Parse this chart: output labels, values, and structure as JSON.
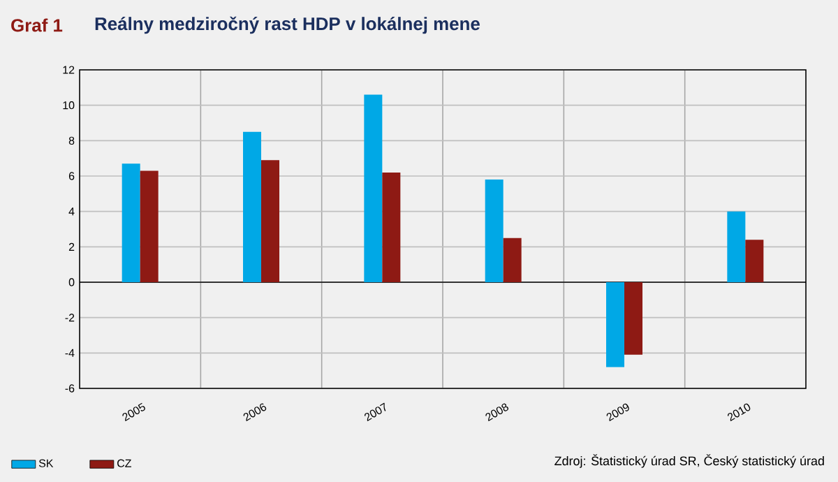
{
  "chart_data": {
    "type": "bar",
    "title": "Reálny medziročný rast HDP v lokálnej mene",
    "categories": [
      "2005",
      "2006",
      "2007",
      "2008",
      "2009",
      "2010"
    ],
    "series": [
      {
        "name": "SK",
        "color": "#00a8e6",
        "values": [
          6.7,
          8.5,
          10.6,
          5.8,
          -4.8,
          4.0
        ]
      },
      {
        "name": "CZ",
        "color": "#8e1a14",
        "values": [
          6.3,
          6.9,
          6.2,
          2.5,
          -4.1,
          2.4
        ]
      }
    ],
    "ylim": [
      -6,
      12
    ],
    "yticks": [
      -6,
      -4,
      -2,
      0,
      2,
      4,
      6,
      8,
      10,
      12
    ],
    "grid": true,
    "legend": "bottom left",
    "annotations": [
      "Graf 1",
      "Zdroj: Štatistický úrad SR, Český statistický úrad"
    ]
  }
}
